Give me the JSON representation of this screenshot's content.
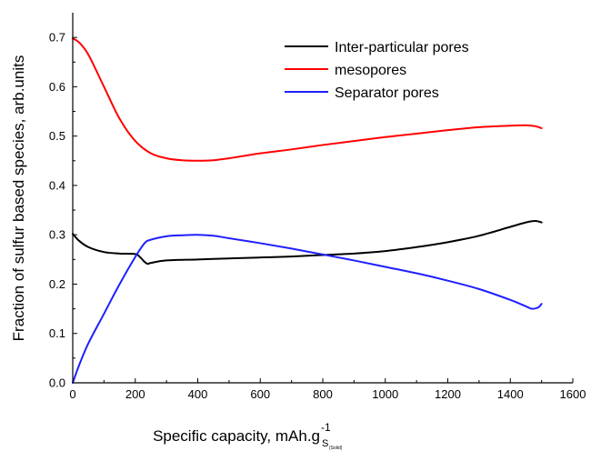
{
  "chart_data": {
    "type": "line",
    "xlabel": "Specific capacity, mAh.g",
    "xlabel_superscript": "-1",
    "xlabel_subscript": "S",
    "xlabel_sub_subscript": "(Solid)",
    "ylabel": "Fraction of sulfur based species, arb.units",
    "xlim": [
      0,
      1600
    ],
    "ylim": [
      0.0,
      0.75
    ],
    "x_ticks": [
      "0",
      "200",
      "400",
      "600",
      "800",
      "1000",
      "1200",
      "1400",
      "1600"
    ],
    "y_ticks": [
      "0.0",
      "0.1",
      "0.2",
      "0.3",
      "0.4",
      "0.5",
      "0.6",
      "0.7"
    ],
    "legend_position": "top-right",
    "grid": false,
    "series": [
      {
        "name": "Inter-particular pores",
        "color": "#000000",
        "x": [
          0,
          20,
          50,
          100,
          150,
          200,
          215,
          230,
          240,
          250,
          300,
          400,
          500,
          600,
          700,
          800,
          900,
          1000,
          1100,
          1200,
          1300,
          1400,
          1450,
          1480,
          1500
        ],
        "y": [
          0.302,
          0.288,
          0.275,
          0.265,
          0.262,
          0.261,
          0.255,
          0.245,
          0.241,
          0.243,
          0.248,
          0.25,
          0.252,
          0.254,
          0.256,
          0.259,
          0.262,
          0.267,
          0.275,
          0.285,
          0.298,
          0.316,
          0.325,
          0.328,
          0.325
        ]
      },
      {
        "name": "mesopores",
        "color": "#ff0000",
        "x": [
          0,
          20,
          50,
          100,
          150,
          200,
          250,
          300,
          350,
          400,
          450,
          500,
          600,
          700,
          800,
          900,
          1000,
          1100,
          1200,
          1300,
          1400,
          1450,
          1480,
          1500
        ],
        "y": [
          0.698,
          0.69,
          0.665,
          0.6,
          0.535,
          0.49,
          0.465,
          0.455,
          0.451,
          0.45,
          0.451,
          0.455,
          0.465,
          0.473,
          0.482,
          0.49,
          0.498,
          0.505,
          0.512,
          0.518,
          0.521,
          0.522,
          0.52,
          0.516
        ]
      },
      {
        "name": "Separator pores",
        "color": "#1f1fff",
        "x": [
          0,
          20,
          50,
          100,
          150,
          200,
          230,
          250,
          300,
          350,
          400,
          450,
          500,
          600,
          700,
          800,
          900,
          1000,
          1100,
          1200,
          1300,
          1400,
          1450,
          1470,
          1490,
          1500
        ],
        "y": [
          0.0,
          0.035,
          0.08,
          0.14,
          0.2,
          0.255,
          0.283,
          0.29,
          0.297,
          0.299,
          0.3,
          0.298,
          0.293,
          0.283,
          0.272,
          0.26,
          0.248,
          0.235,
          0.222,
          0.207,
          0.19,
          0.168,
          0.155,
          0.15,
          0.153,
          0.16
        ]
      }
    ]
  }
}
